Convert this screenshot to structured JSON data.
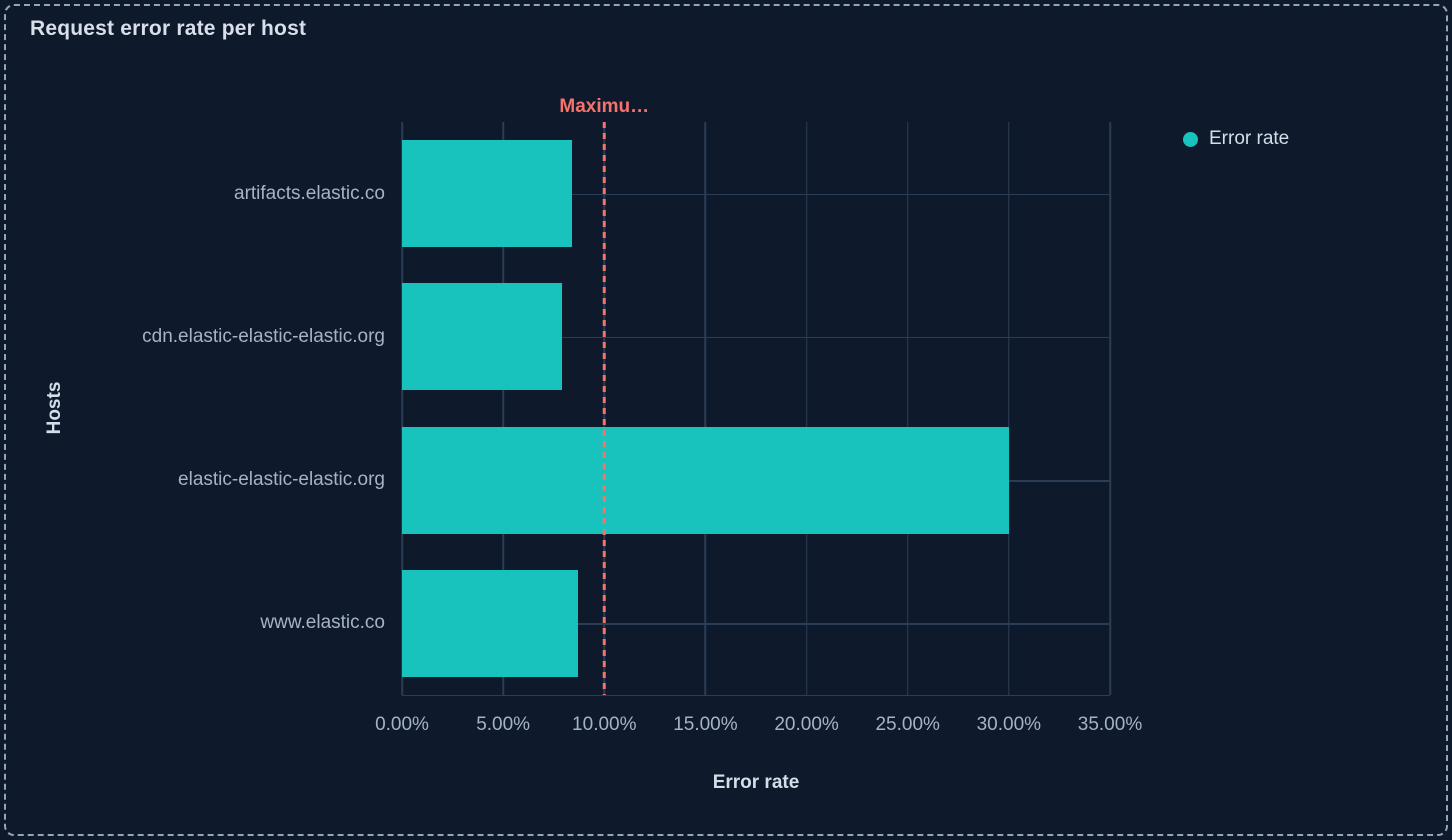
{
  "panel": {
    "title": "Request error rate per host"
  },
  "legend": {
    "position": "top-right",
    "items": [
      {
        "label": "Error rate",
        "color": "#18c2bd",
        "shape": "circle"
      }
    ]
  },
  "colors": {
    "background": "#0e1a2b",
    "bar": "#18c2bd",
    "annotation": "#f6726a",
    "grid": "#2b3c55",
    "text_primary": "#d5dde9",
    "text_muted": "#a5b2c7",
    "selection_border": "#93a4be"
  },
  "chart_data": {
    "type": "bar",
    "orientation": "horizontal",
    "title": "Request error rate per host",
    "xlabel": "Error rate",
    "ylabel": "Hosts",
    "categories": [
      "artifacts.elastic.co",
      "cdn.elastic-elastic-elastic.org",
      "elastic-elastic-elastic.org",
      "www.elastic.co"
    ],
    "series": [
      {
        "name": "Error rate",
        "values": [
          8.4,
          7.9,
          30,
          8.7
        ],
        "unit": "%"
      }
    ],
    "xlim": [
      0,
      35
    ],
    "x_ticks": [
      0,
      5,
      10,
      15,
      20,
      25,
      30,
      35
    ],
    "x_tick_labels": [
      "0.00%",
      "5.00%",
      "10.00%",
      "15.00%",
      "20.00%",
      "25.00%",
      "30.00%",
      "35.00%"
    ],
    "grid": true,
    "legend_position": "top-right",
    "annotations": [
      {
        "type": "vline",
        "value": 10,
        "label": "Maximu…",
        "style": "dashed",
        "color": "#f6726a"
      }
    ]
  }
}
